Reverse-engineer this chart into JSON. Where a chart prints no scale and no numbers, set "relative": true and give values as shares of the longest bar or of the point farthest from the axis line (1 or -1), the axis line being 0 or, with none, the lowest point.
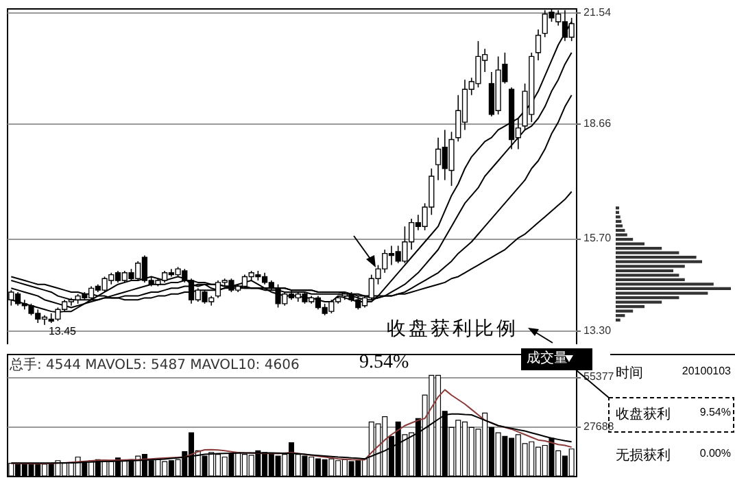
{
  "chart_data": [
    {
      "type": "candlestick",
      "ylim": [
        12.95,
        21.65
      ],
      "yticks": [
        {
          "value": 13.3,
          "label": "13.30"
        },
        {
          "value": 15.7,
          "label": "15.70"
        },
        18.66,
        21.54
      ],
      "grid": "y",
      "tick_labels": "y",
      "categories": [
        null,
        null,
        null,
        null,
        null,
        null,
        null,
        null,
        null,
        null,
        null,
        null,
        null,
        null,
        null,
        null,
        null,
        null,
        null,
        null,
        null,
        null,
        null,
        null,
        null,
        null,
        null,
        null,
        null,
        null,
        null,
        null,
        null,
        null,
        null,
        null,
        null,
        null,
        null,
        null,
        null,
        null,
        null,
        null,
        null,
        null,
        null,
        null,
        null,
        null,
        null,
        null,
        null,
        null,
        null,
        null,
        null,
        null,
        null,
        null,
        null,
        null,
        null,
        null,
        null,
        null,
        null,
        null,
        null,
        null,
        null,
        null,
        null,
        null,
        null,
        null,
        null,
        null,
        null,
        null,
        null,
        null,
        null,
        null,
        null
      ],
      "ohlc": [
        [
          14.1,
          14.35,
          13.95,
          14.3
        ],
        [
          14.25,
          14.3,
          13.95,
          14.0
        ],
        [
          14.0,
          14.1,
          13.85,
          13.95
        ],
        [
          13.95,
          14.0,
          13.7,
          13.75
        ],
        [
          13.75,
          13.85,
          13.5,
          13.6
        ],
        [
          13.6,
          13.7,
          13.45,
          13.65
        ],
        [
          13.6,
          13.75,
          13.5,
          13.55
        ],
        [
          13.6,
          13.9,
          13.55,
          13.85
        ],
        [
          13.85,
          14.1,
          13.8,
          14.05
        ],
        [
          14.05,
          14.15,
          13.95,
          14.1
        ],
        [
          14.1,
          14.25,
          14.0,
          14.2
        ],
        [
          14.25,
          14.3,
          14.1,
          14.15
        ],
        [
          14.15,
          14.45,
          14.1,
          14.4
        ],
        [
          14.45,
          14.5,
          14.3,
          14.35
        ],
        [
          14.35,
          14.7,
          14.3,
          14.65
        ],
        [
          14.6,
          14.8,
          14.5,
          14.75
        ],
        [
          14.8,
          14.85,
          14.55,
          14.6
        ],
        [
          14.6,
          14.85,
          14.55,
          14.8
        ],
        [
          14.8,
          14.9,
          14.6,
          14.65
        ],
        [
          14.65,
          15.1,
          14.6,
          15.05
        ],
        [
          15.2,
          15.25,
          14.55,
          14.6
        ],
        [
          14.6,
          14.7,
          14.45,
          14.5
        ],
        [
          14.5,
          14.65,
          14.45,
          14.6
        ],
        [
          14.6,
          14.85,
          14.55,
          14.8
        ],
        [
          14.8,
          14.9,
          14.7,
          14.75
        ],
        [
          14.75,
          14.95,
          14.7,
          14.9
        ],
        [
          14.85,
          14.9,
          14.55,
          14.6
        ],
        [
          14.6,
          14.65,
          14.0,
          14.1
        ],
        [
          14.1,
          14.4,
          14.05,
          14.35
        ],
        [
          14.3,
          14.35,
          14.0,
          14.05
        ],
        [
          14.05,
          14.2,
          13.95,
          14.15
        ],
        [
          14.2,
          14.6,
          14.15,
          14.55
        ],
        [
          14.55,
          14.65,
          14.45,
          14.6
        ],
        [
          14.6,
          14.65,
          14.3,
          14.35
        ],
        [
          14.35,
          14.5,
          14.3,
          14.45
        ],
        [
          14.45,
          14.75,
          14.4,
          14.7
        ],
        [
          14.7,
          14.85,
          14.6,
          14.8
        ],
        [
          14.75,
          14.85,
          14.6,
          14.7
        ],
        [
          14.7,
          14.8,
          14.5,
          14.55
        ],
        [
          14.55,
          14.6,
          14.35,
          14.4
        ],
        [
          14.4,
          14.5,
          13.9,
          14.0
        ],
        [
          14.0,
          14.3,
          13.95,
          14.25
        ],
        [
          14.25,
          14.35,
          14.1,
          14.15
        ],
        [
          14.15,
          14.3,
          14.05,
          14.25
        ],
        [
          14.25,
          14.3,
          14.0,
          14.05
        ],
        [
          14.05,
          14.2,
          14.0,
          14.15
        ],
        [
          14.15,
          14.2,
          13.85,
          13.9
        ],
        [
          13.9,
          14.0,
          13.7,
          13.75
        ],
        [
          13.8,
          14.1,
          13.75,
          14.05
        ],
        [
          14.05,
          14.2,
          14.0,
          14.15
        ],
        [
          14.2,
          14.3,
          14.1,
          14.25
        ],
        [
          14.25,
          14.3,
          14.05,
          14.1
        ],
        [
          14.1,
          14.2,
          13.85,
          13.9
        ],
        [
          13.95,
          14.2,
          13.9,
          14.15
        ],
        [
          14.15,
          14.75,
          14.1,
          14.65
        ],
        [
          14.65,
          15.0,
          14.5,
          14.9
        ],
        [
          14.9,
          15.4,
          14.8,
          15.3
        ],
        [
          15.3,
          15.5,
          15.0,
          15.25
        ],
        [
          15.35,
          15.5,
          15.05,
          15.1
        ],
        [
          15.1,
          16.0,
          15.05,
          15.6
        ],
        [
          15.6,
          16.2,
          15.4,
          16.1
        ],
        [
          16.1,
          16.3,
          15.9,
          16.0
        ],
        [
          16.0,
          16.6,
          15.9,
          16.5
        ],
        [
          16.5,
          17.5,
          16.3,
          17.3
        ],
        [
          17.6,
          18.3,
          17.2,
          18.0
        ],
        [
          18.05,
          18.5,
          17.2,
          17.5
        ],
        [
          17.45,
          18.45,
          17.05,
          18.25
        ],
        [
          18.3,
          19.4,
          18.2,
          19.0
        ],
        [
          18.7,
          19.8,
          18.5,
          19.55
        ],
        [
          19.55,
          19.85,
          19.4,
          19.75
        ],
        [
          19.7,
          20.8,
          19.6,
          20.4
        ],
        [
          20.3,
          20.6,
          20.0,
          20.45
        ],
        [
          19.7,
          20.0,
          18.85,
          18.9
        ],
        [
          19.0,
          20.4,
          18.9,
          20.05
        ],
        [
          20.2,
          20.5,
          19.7,
          19.75
        ],
        [
          19.55,
          19.6,
          18.0,
          18.25
        ],
        [
          18.3,
          18.8,
          18.0,
          18.55
        ],
        [
          18.6,
          19.7,
          18.5,
          19.5
        ],
        [
          18.9,
          20.5,
          18.7,
          20.4
        ],
        [
          20.5,
          21.1,
          20.3,
          20.95
        ],
        [
          21.0,
          21.6,
          20.9,
          21.5
        ],
        [
          21.55,
          21.62,
          21.3,
          21.4
        ],
        [
          21.3,
          21.6,
          21.2,
          21.5
        ],
        [
          21.3,
          21.6,
          20.8,
          20.9
        ],
        [
          20.9,
          21.4,
          20.8,
          21.25
        ]
      ],
      "colors": [
        "#ffffff",
        "#000000",
        "#000000",
        "#000000",
        "#000000",
        "#ffffff",
        "#000000",
        "#ffffff",
        "#ffffff",
        "#ffffff",
        "#ffffff",
        "#000000",
        "#ffffff",
        "#000000",
        "#ffffff",
        "#ffffff",
        "#000000",
        "#ffffff",
        "#000000",
        "#ffffff",
        "#000000",
        "#000000",
        "#ffffff",
        "#ffffff",
        "#000000",
        "#ffffff",
        "#000000",
        "#000000",
        "#ffffff",
        "#000000",
        "#ffffff",
        "#ffffff",
        "#ffffff",
        "#000000",
        "#ffffff",
        "#ffffff",
        "#ffffff",
        "#000000",
        "#000000",
        "#000000",
        "#000000",
        "#ffffff",
        "#000000",
        "#ffffff",
        "#000000",
        "#ffffff",
        "#000000",
        "#000000",
        "#ffffff",
        "#ffffff",
        "#ffffff",
        "#000000",
        "#000000",
        "#ffffff",
        "#ffffff",
        "#ffffff",
        "#ffffff",
        "#000000",
        "#000000",
        "#ffffff",
        "#ffffff",
        "#000000",
        "#ffffff",
        "#ffffff",
        "#ffffff",
        "#000000",
        "#ffffff",
        "#ffffff",
        "#ffffff",
        "#ffffff",
        "#ffffff",
        "#ffffff",
        "#000000",
        "#ffffff",
        "#000000",
        "#000000",
        "#ffffff",
        "#ffffff",
        "#ffffff",
        "#ffffff",
        "#ffffff",
        "#000000",
        "#ffffff",
        "#000000",
        "#ffffff"
      ],
      "series": [
        {
          "type": "line",
          "color": "#000000",
          "values": [
            14.1,
            14.05,
            14.0,
            13.95,
            13.9,
            13.85,
            13.8,
            13.78,
            13.8,
            13.8,
            13.9,
            14.0,
            14.1,
            14.2,
            14.3,
            14.4,
            14.5,
            14.55,
            14.6,
            14.6,
            14.65,
            14.7,
            14.65,
            14.6,
            14.65,
            14.7,
            14.65,
            14.5,
            14.45,
            14.5,
            14.4,
            14.35,
            14.4,
            14.45,
            14.5,
            14.55,
            14.6,
            14.5,
            14.4,
            14.3,
            14.25,
            14.2,
            14.2,
            14.2,
            14.15,
            14.15,
            14.1,
            14.05,
            14.05,
            14.2,
            14.15,
            14.1,
            14.05,
            14.05,
            14.05,
            14.2,
            14.4,
            14.6,
            14.8,
            15.0,
            15.2,
            15.4,
            15.6,
            15.8,
            16.0,
            16.4,
            16.8,
            17.1,
            17.5,
            17.8,
            18.0,
            18.2,
            18.3,
            18.5,
            18.6,
            18.7,
            18.8,
            19.0,
            19.2,
            19.5,
            19.9,
            20.3,
            20.7,
            21.0,
            21.3
          ]
        },
        {
          "type": "line",
          "color": "#000000",
          "values": [
            14.4,
            14.35,
            14.3,
            14.25,
            14.2,
            14.1,
            14.05,
            14.0,
            13.95,
            13.9,
            13.95,
            14.0,
            14.05,
            14.1,
            14.15,
            14.2,
            14.25,
            14.3,
            14.35,
            14.4,
            14.45,
            14.5,
            14.5,
            14.5,
            14.55,
            14.55,
            14.6,
            14.6,
            14.55,
            14.55,
            14.5,
            14.5,
            14.45,
            14.45,
            14.45,
            14.4,
            14.4,
            14.4,
            14.35,
            14.35,
            14.35,
            14.3,
            14.3,
            14.3,
            14.3,
            14.25,
            14.25,
            14.25,
            14.25,
            14.25,
            14.2,
            14.2,
            14.15,
            14.1,
            14.1,
            14.15,
            14.2,
            14.3,
            14.4,
            14.5,
            14.65,
            14.8,
            15.0,
            15.2,
            15.4,
            15.7,
            16.0,
            16.3,
            16.6,
            16.8,
            17.0,
            17.3,
            17.5,
            17.7,
            17.9,
            18.1,
            18.3,
            18.5,
            18.6,
            18.8,
            19.1,
            19.5,
            19.8,
            20.2,
            20.5
          ]
        },
        {
          "type": "line",
          "color": "#000000",
          "values": [
            14.6,
            14.55,
            14.5,
            14.45,
            14.4,
            14.35,
            14.3,
            14.2,
            14.15,
            14.1,
            14.1,
            14.1,
            14.1,
            14.1,
            14.15,
            14.15,
            14.15,
            14.2,
            14.2,
            14.2,
            14.25,
            14.3,
            14.3,
            14.35,
            14.4,
            14.4,
            14.45,
            14.45,
            14.5,
            14.5,
            14.5,
            14.5,
            14.45,
            14.45,
            14.45,
            14.45,
            14.4,
            14.4,
            14.4,
            14.4,
            14.4,
            14.4,
            14.35,
            14.35,
            14.35,
            14.35,
            14.3,
            14.3,
            14.3,
            14.3,
            14.25,
            14.25,
            14.2,
            14.2,
            14.15,
            14.15,
            14.2,
            14.2,
            14.25,
            14.3,
            14.4,
            14.5,
            14.6,
            14.7,
            14.8,
            14.95,
            15.1,
            15.3,
            15.45,
            15.6,
            15.8,
            16.0,
            16.2,
            16.4,
            16.6,
            16.8,
            17.0,
            17.2,
            17.5,
            17.7,
            18.0,
            18.4,
            18.7,
            19.1,
            19.4
          ]
        },
        {
          "type": "line",
          "color": "#000000",
          "values": [
            14.7,
            14.65,
            14.6,
            14.55,
            14.5,
            14.5,
            14.45,
            14.4,
            14.35,
            14.3,
            14.3,
            14.25,
            14.25,
            14.2,
            14.2,
            14.15,
            14.15,
            14.1,
            14.1,
            14.1,
            14.15,
            14.15,
            14.2,
            14.2,
            14.25,
            14.25,
            14.3,
            14.3,
            14.35,
            14.35,
            14.35,
            14.35,
            14.4,
            14.4,
            14.4,
            14.4,
            14.4,
            14.4,
            14.4,
            14.4,
            14.4,
            14.4,
            14.35,
            14.35,
            14.35,
            14.35,
            14.3,
            14.3,
            14.3,
            14.3,
            14.3,
            14.25,
            14.25,
            14.2,
            14.2,
            14.2,
            14.2,
            14.2,
            14.25,
            14.25,
            14.3,
            14.35,
            14.4,
            14.45,
            14.5,
            14.55,
            14.65,
            14.7,
            14.8,
            14.9,
            15.0,
            15.1,
            15.2,
            15.3,
            15.4,
            15.55,
            15.7,
            15.8,
            15.95,
            16.1,
            16.25,
            16.4,
            16.55,
            16.7,
            16.9
          ]
        }
      ],
      "annotations": [
        {
          "text": "13.45",
          "y": 13.45
        },
        "收盘获利比例"
      ]
    },
    {
      "type": "bar",
      "ylim": [
        0,
        68000
      ],
      "yticks": [
        27688,
        55377
      ],
      "grid": "y",
      "tick_labels": "y",
      "categories": [
        null,
        null,
        null,
        null,
        null,
        null,
        null,
        null,
        null,
        null,
        null,
        null,
        null,
        null,
        null,
        null,
        null,
        null,
        null,
        null,
        null,
        null,
        null,
        null,
        null,
        null,
        null,
        null,
        null,
        null,
        null,
        null,
        null,
        null,
        null,
        null,
        null,
        null,
        null,
        null,
        null,
        null,
        null,
        null,
        null,
        null,
        null,
        null,
        null,
        null,
        null,
        null,
        null,
        null,
        null,
        null,
        null,
        null,
        null,
        null,
        null,
        null,
        null,
        null,
        null,
        null,
        null,
        null,
        null,
        null,
        null,
        null,
        null,
        null,
        null,
        null,
        null,
        null,
        null,
        null,
        null,
        null,
        null,
        null,
        null
      ],
      "values": [
        7000,
        6500,
        6800,
        6500,
        7000,
        6500,
        6800,
        8500,
        7000,
        7500,
        10500,
        8000,
        8500,
        9000,
        8500,
        8000,
        10000,
        8500,
        9000,
        11000,
        12000,
        8500,
        9000,
        8000,
        8500,
        9000,
        13500,
        24000,
        14000,
        11000,
        13000,
        12000,
        10500,
        12500,
        13000,
        12000,
        11500,
        14000,
        13000,
        12000,
        11000,
        12000,
        18500,
        12000,
        11000,
        10500,
        9500,
        9000,
        9500,
        8500,
        9000,
        8000,
        8500,
        9500,
        30000,
        29000,
        33000,
        22000,
        30000,
        23000,
        24000,
        32000,
        45000,
        56000,
        56000,
        36000,
        27000,
        31000,
        30000,
        27000,
        26000,
        35000,
        27000,
        24000,
        22000,
        21000,
        23000,
        18000,
        19000,
        16000,
        17000,
        21000,
        14000,
        11000,
        15000
      ],
      "colors": [
        "#ffffff",
        "#000000",
        "#000000",
        "#000000",
        "#000000",
        "#ffffff",
        "#000000",
        "#ffffff",
        "#ffffff",
        "#ffffff",
        "#ffffff",
        "#000000",
        "#ffffff",
        "#000000",
        "#ffffff",
        "#ffffff",
        "#000000",
        "#ffffff",
        "#000000",
        "#ffffff",
        "#000000",
        "#000000",
        "#ffffff",
        "#ffffff",
        "#000000",
        "#ffffff",
        "#000000",
        "#000000",
        "#ffffff",
        "#000000",
        "#ffffff",
        "#ffffff",
        "#ffffff",
        "#000000",
        "#ffffff",
        "#ffffff",
        "#ffffff",
        "#000000",
        "#000000",
        "#000000",
        "#000000",
        "#ffffff",
        "#000000",
        "#ffffff",
        "#000000",
        "#ffffff",
        "#000000",
        "#000000",
        "#ffffff",
        "#ffffff",
        "#ffffff",
        "#000000",
        "#000000",
        "#ffffff",
        "#ffffff",
        "#ffffff",
        "#ffffff",
        "#000000",
        "#000000",
        "#ffffff",
        "#ffffff",
        "#000000",
        "#ffffff",
        "#ffffff",
        "#ffffff",
        "#000000",
        "#ffffff",
        "#ffffff",
        "#ffffff",
        "#ffffff",
        "#ffffff",
        "#ffffff",
        "#000000",
        "#ffffff",
        "#000000",
        "#000000",
        "#ffffff",
        "#ffffff",
        "#ffffff",
        "#ffffff",
        "#ffffff",
        "#000000",
        "#ffffff",
        "#000000",
        "#ffffff"
      ],
      "series": [
        {
          "type": "line",
          "color": "#8b3a3a",
          "values": [
            7000,
            7000,
            6900,
            6800,
            6800,
            6900,
            7000,
            7200,
            7300,
            7500,
            7800,
            8100,
            8400,
            8700,
            8800,
            8700,
            8800,
            8900,
            9000,
            9000,
            9300,
            9500,
            9700,
            9900,
            10100,
            10300,
            10500,
            12000,
            13500,
            14500,
            14600,
            14400,
            14000,
            13500,
            13000,
            12800,
            12700,
            12600,
            12500,
            12500,
            12400,
            12700,
            13000,
            12500,
            12000,
            11500,
            11000,
            10500,
            10000,
            9500,
            9300,
            9100,
            9000,
            9000,
            13000,
            16500,
            20000,
            23000,
            25500,
            28000,
            29500,
            31000,
            32000,
            38000,
            44000,
            48000,
            45000,
            42500,
            40000,
            37000,
            34000,
            31000,
            29500,
            28000,
            27000,
            26000,
            24500,
            23000,
            21500,
            20000,
            19500,
            18500,
            17500,
            17000,
            16000
          ]
        },
        {
          "type": "line",
          "color": "#000000",
          "values": [
            7200,
            7200,
            7200,
            7200,
            7200,
            7200,
            7200,
            7200,
            7300,
            7300,
            7400,
            7600,
            7700,
            7900,
            8000,
            8100,
            8200,
            8300,
            8500,
            8600,
            8800,
            9000,
            9200,
            9400,
            9700,
            10000,
            10500,
            11000,
            11500,
            12000,
            12200,
            12400,
            12500,
            12600,
            12700,
            12800,
            12800,
            12800,
            12800,
            12800,
            12700,
            12600,
            12500,
            12300,
            12000,
            11700,
            11400,
            11100,
            10800,
            10500,
            10300,
            10000,
            9800,
            9500,
            11000,
            12500,
            14000,
            16000,
            18000,
            20000,
            22000,
            24000,
            26500,
            29000,
            31500,
            34000,
            34500,
            34500,
            34200,
            34000,
            32500,
            31000,
            29500,
            28000,
            27200,
            26500,
            25700,
            25000,
            24000,
            23000,
            22000,
            21000,
            20300,
            19600,
            19000
          ]
        }
      ],
      "annotations": [
        "总手: 4544 MAVOL5: 5487 MAVOL10: 4606",
        "9.54%",
        "成交量"
      ]
    },
    {
      "type": "bar",
      "orientation": "horizontal",
      "relative": true,
      "color": "#333333",
      "tick_labels": false,
      "categories": [
        null,
        null,
        null,
        null,
        null,
        null,
        null,
        null,
        null,
        null,
        null,
        null,
        null,
        null,
        null,
        null,
        null,
        null,
        null,
        null,
        null,
        null,
        null,
        null,
        null,
        null
      ],
      "values": [
        0.03,
        0.03,
        0.04,
        0.05,
        0.06,
        0.08,
        0.1,
        0.15,
        0.25,
        0.4,
        0.55,
        0.7,
        0.75,
        0.6,
        0.5,
        0.55,
        0.6,
        0.85,
        1.0,
        0.8,
        0.55,
        0.4,
        0.25,
        0.15,
        0.08,
        0.04
      ]
    },
    {
      "type": "other",
      "annotations": [
        "时间",
        "20100103",
        "收盘获利",
        "9.54%",
        "无损获利",
        "0.00%"
      ]
    }
  ]
}
